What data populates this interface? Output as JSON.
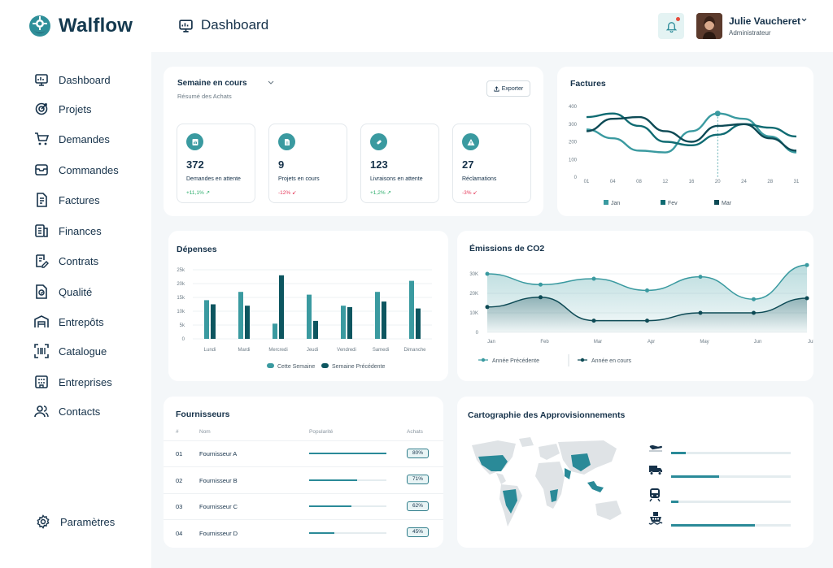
{
  "app": {
    "name": "Walflow"
  },
  "sidebar": {
    "items": [
      {
        "label": "Dashboard",
        "icon": "dashboard-icon"
      },
      {
        "label": "Projets",
        "icon": "target-icon"
      },
      {
        "label": "Demandes",
        "icon": "cart-icon"
      },
      {
        "label": "Commandes",
        "icon": "box-icon"
      },
      {
        "label": "Factures",
        "icon": "invoice-icon"
      },
      {
        "label": "Finances",
        "icon": "finance-icon"
      },
      {
        "label": "Contrats",
        "icon": "contract-icon"
      },
      {
        "label": "Qualité",
        "icon": "quality-icon"
      },
      {
        "label": "Entrepôts",
        "icon": "warehouse-icon"
      },
      {
        "label": "Catalogue",
        "icon": "barcode-icon"
      },
      {
        "label": "Entreprises",
        "icon": "building-icon"
      },
      {
        "label": "Contacts",
        "icon": "users-icon"
      }
    ],
    "settings": "Paramètres"
  },
  "header": {
    "title": "Dashboard",
    "user_name": "Julie Vaucheret",
    "user_role": "Administrateur"
  },
  "summary": {
    "period": "Semaine en cours",
    "subtitle": "Résumé des Achats",
    "export_label": "Exporter",
    "stats": [
      {
        "value": "372",
        "label": "Demandes en attente",
        "delta": "+11,1%",
        "dir": "up"
      },
      {
        "value": "9",
        "label": "Projets en cours",
        "delta": "-12%",
        "dir": "down"
      },
      {
        "value": "123",
        "label": "Livraisons en attente",
        "delta": "+1,2%",
        "dir": "up"
      },
      {
        "value": "27",
        "label": "Réclamations",
        "delta": "-3%",
        "dir": "down"
      }
    ]
  },
  "colors": {
    "primary": "#14394f",
    "accent": "#3a9aa0",
    "dark_teal": "#0b5a63",
    "up": "#2eae6d",
    "down": "#e53a5a"
  },
  "chart_data": [
    {
      "type": "line",
      "title": "Factures",
      "x": [
        "01",
        "04",
        "08",
        "12",
        "16",
        "20",
        "24",
        "28",
        "31"
      ],
      "ylim": [
        0,
        400
      ],
      "yticks": [
        "0",
        "100",
        "200",
        "300",
        "400"
      ],
      "series": [
        {
          "name": "Jan",
          "color": "#3a9aa0",
          "values": [
            270,
            220,
            150,
            140,
            260,
            360,
            330,
            230,
            140
          ]
        },
        {
          "name": "Fev",
          "color": "#0f6b72",
          "values": [
            340,
            360,
            290,
            200,
            180,
            240,
            300,
            280,
            230
          ]
        },
        {
          "name": "Mar",
          "color": "#0d4a55",
          "values": [
            260,
            330,
            340,
            260,
            200,
            290,
            300,
            220,
            150
          ]
        }
      ],
      "grid": false,
      "legend": "bottom"
    },
    {
      "type": "bar",
      "title": "Dépenses",
      "categories": [
        "Lundi",
        "Mardi",
        "Mercredi",
        "Jeudi",
        "Vendredi",
        "Samedi",
        "Dimanche"
      ],
      "ylim": [
        0,
        25
      ],
      "yticks": [
        "0",
        "5k",
        "10k",
        "15k",
        "20k",
        "25k"
      ],
      "series": [
        {
          "name": "Cette Semaine",
          "color": "#3a9aa0",
          "values": [
            14,
            17,
            5.5,
            16,
            12,
            17,
            21
          ]
        },
        {
          "name": "Semaine Précédente",
          "color": "#0d5660",
          "values": [
            12.5,
            12,
            23,
            6.5,
            11.5,
            13.5,
            11
          ]
        }
      ],
      "grid": true,
      "legend": "bottom"
    },
    {
      "type": "area",
      "title": "Émissions de CO2",
      "x": [
        "Jan",
        "Feb",
        "Mar",
        "Apr",
        "May",
        "Jun",
        "Jul"
      ],
      "ylim": [
        0,
        30
      ],
      "yticks": [
        "0",
        "10K",
        "20K",
        "30K"
      ],
      "series": [
        {
          "name": "Année Précédente",
          "color": "#3a9aa0",
          "values": [
            30,
            24.5,
            27.5,
            21.5,
            28.5,
            17,
            34.5
          ]
        },
        {
          "name": "Année en cours",
          "color": "#0d4a55",
          "values": [
            13,
            18,
            6,
            6,
            10,
            10,
            17.5
          ]
        }
      ],
      "grid": true,
      "legend": "bottom"
    }
  ],
  "suppliers": {
    "title": "Fournisseurs",
    "headers": [
      "#",
      "Nom",
      "Popularité",
      "Achats"
    ],
    "rows": [
      {
        "num": "01",
        "name": "Fournisseur A",
        "popularity": 1.0,
        "purchases": "80%"
      },
      {
        "num": "02",
        "name": "Fournisseur B",
        "popularity": 0.62,
        "purchases": "71%"
      },
      {
        "num": "03",
        "name": "Fournisseur C",
        "popularity": 0.55,
        "purchases": "62%"
      },
      {
        "num": "04",
        "name": "Fournisseur D",
        "popularity": 0.33,
        "purchases": "45%"
      }
    ]
  },
  "map": {
    "title": "Cartographie des Approvisionnements",
    "transport": [
      {
        "icon": "plane-icon",
        "level": 0.12
      },
      {
        "icon": "truck-icon",
        "level": 0.4
      },
      {
        "icon": "train-icon",
        "level": 0.06
      },
      {
        "icon": "ship-icon",
        "level": 0.7
      }
    ]
  }
}
